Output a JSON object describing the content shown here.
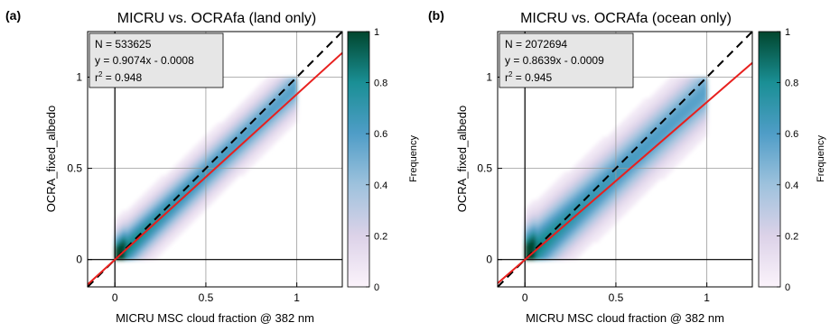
{
  "chart_data": [
    {
      "type": "heatmap",
      "panel_label": "(a)",
      "title": "MICRU vs. OCRAfa (land only)",
      "xlabel": "MICRU MSC cloud fraction @ 382 nm",
      "ylabel": "OCRA_fixed_albedo",
      "xlim": [
        -0.15,
        1.25
      ],
      "ylim": [
        -0.15,
        1.25
      ],
      "x_ticks": [
        0,
        0.5,
        1
      ],
      "x_tick_labels": [
        "0",
        "0.5",
        "1"
      ],
      "y_ticks": [
        0,
        0.5,
        1
      ],
      "y_tick_labels": [
        "0",
        "0.5",
        "1"
      ],
      "grid": true,
      "stats": {
        "n": "N = 533625",
        "fit": "y = 0.9074x - 0.0008",
        "r2_base": "r",
        "r2_exp": "2",
        "r2_value": " = 0.948"
      },
      "fit_line": {
        "slope": 0.9074,
        "intercept": -0.0008,
        "color": "#e8201e"
      },
      "identity_line": {
        "slope": 1,
        "intercept": 0,
        "color": "#000000",
        "style": "dashed"
      },
      "colorbar": {
        "label": "Frequency",
        "min": 0,
        "max": 1,
        "ticks": [
          "0",
          "0.2",
          "0.4",
          "0.6",
          "0.8",
          "1"
        ]
      }
    },
    {
      "type": "heatmap",
      "panel_label": "(b)",
      "title": "MICRU vs. OCRAfa (ocean only)",
      "xlabel": "MICRU MSC cloud fraction @ 382 nm",
      "ylabel": "OCRA_fixed_albedo",
      "xlim": [
        -0.15,
        1.25
      ],
      "ylim": [
        -0.15,
        1.25
      ],
      "x_ticks": [
        0,
        0.5,
        1
      ],
      "x_tick_labels": [
        "0",
        "0.5",
        "1"
      ],
      "y_ticks": [
        0,
        0.5,
        1
      ],
      "y_tick_labels": [
        "0",
        "0.5",
        "1"
      ],
      "grid": true,
      "stats": {
        "n": "N = 2072694",
        "fit": "y = 0.8639x - 0.0009",
        "r2_base": "r",
        "r2_exp": "2",
        "r2_value": " = 0.945"
      },
      "fit_line": {
        "slope": 0.8639,
        "intercept": -0.0009,
        "color": "#e8201e"
      },
      "identity_line": {
        "slope": 1,
        "intercept": 0,
        "color": "#000000",
        "style": "dashed"
      },
      "colorbar": {
        "label": "Frequency",
        "min": 0,
        "max": 1,
        "ticks": [
          "0",
          "0.2",
          "0.4",
          "0.6",
          "0.8",
          "1"
        ]
      }
    }
  ]
}
